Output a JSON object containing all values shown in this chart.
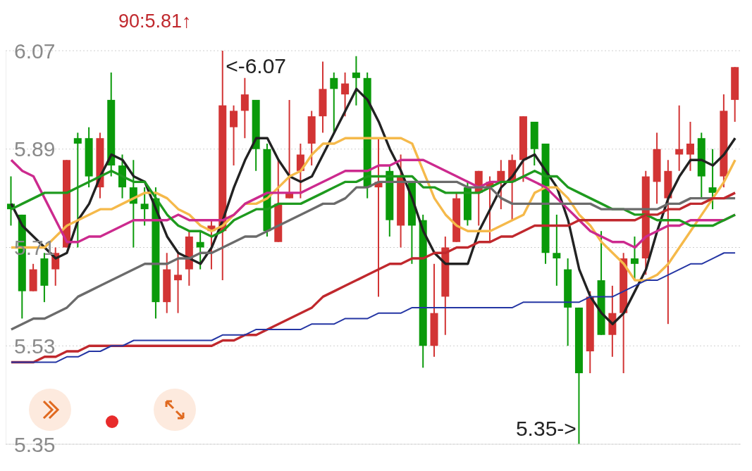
{
  "chart_data": {
    "type": "candlestick",
    "categories": [
      null,
      null,
      null,
      null,
      null,
      null,
      null,
      null,
      null,
      null,
      null,
      null,
      null,
      null,
      null,
      null,
      null,
      null,
      null,
      null,
      null,
      null,
      null,
      null,
      null,
      null,
      null,
      null,
      null,
      null,
      null,
      null,
      null,
      null,
      null,
      null,
      null,
      null,
      null,
      null,
      null,
      null,
      null,
      null,
      null,
      null,
      null,
      null,
      null,
      null,
      null,
      null,
      null,
      null,
      null,
      null,
      null,
      null,
      null,
      null,
      null,
      null,
      null,
      null,
      null,
      null
    ],
    "ohlc": [
      [
        5.79,
        5.84,
        5.75,
        5.78
      ],
      [
        5.77,
        5.77,
        5.58,
        5.63
      ],
      [
        5.63,
        5.68,
        5.63,
        5.67
      ],
      [
        5.69,
        5.7,
        5.61,
        5.64
      ],
      [
        5.67,
        5.71,
        5.64,
        5.7
      ],
      [
        5.71,
        5.87,
        5.71,
        5.87
      ],
      [
        5.91,
        5.92,
        5.71,
        5.9
      ],
      [
        5.91,
        5.93,
        5.82,
        5.84
      ],
      [
        5.82,
        5.92,
        5.8,
        5.91
      ],
      [
        5.98,
        6.03,
        5.84,
        5.86
      ],
      [
        5.86,
        5.88,
        5.8,
        5.82
      ],
      [
        5.82,
        5.87,
        5.71,
        5.79
      ],
      [
        5.79,
        5.82,
        5.75,
        5.78
      ],
      [
        5.8,
        5.82,
        5.58,
        5.61
      ],
      [
        5.61,
        5.7,
        5.59,
        5.67
      ],
      [
        5.65,
        5.7,
        5.59,
        5.66
      ],
      [
        5.67,
        5.74,
        5.64,
        5.73
      ],
      [
        5.72,
        5.74,
        5.67,
        5.71
      ],
      [
        5.74,
        5.76,
        5.67,
        5.75
      ],
      [
        5.74,
        6.07,
        5.65,
        5.97
      ],
      [
        5.93,
        5.97,
        5.86,
        5.96
      ],
      [
        5.96,
        6.02,
        5.91,
        5.99
      ],
      [
        5.98,
        5.98,
        5.85,
        5.89
      ],
      [
        5.89,
        5.9,
        5.73,
        5.74
      ],
      [
        5.72,
        5.87,
        5.72,
        5.79
      ],
      [
        5.8,
        5.98,
        5.8,
        5.81
      ],
      [
        5.85,
        5.9,
        5.8,
        5.88
      ],
      [
        5.9,
        5.96,
        5.86,
        5.95
      ],
      [
        5.95,
        6.05,
        5.92,
        6.0
      ],
      [
        6.02,
        6.03,
        5.92,
        6.0
      ],
      [
        5.99,
        6.03,
        5.95,
        6.01
      ],
      [
        6.03,
        6.06,
        5.97,
        6.02
      ],
      [
        6.02,
        6.03,
        5.8,
        5.82
      ],
      [
        5.82,
        5.91,
        5.62,
        5.83
      ],
      [
        5.85,
        5.86,
        5.73,
        5.76
      ],
      [
        5.75,
        5.88,
        5.71,
        5.84
      ],
      [
        5.83,
        5.83,
        5.68,
        5.75
      ],
      [
        5.76,
        5.77,
        5.49,
        5.53
      ],
      [
        5.53,
        5.68,
        5.51,
        5.59
      ],
      [
        5.62,
        5.73,
        5.55,
        5.71
      ],
      [
        5.72,
        5.81,
        5.72,
        5.8
      ],
      [
        5.82,
        5.83,
        5.75,
        5.76
      ],
      [
        5.81,
        5.85,
        5.75,
        5.85
      ],
      [
        5.82,
        5.84,
        5.72,
        5.83
      ],
      [
        5.83,
        5.87,
        5.78,
        5.85
      ],
      [
        5.83,
        5.88,
        5.76,
        5.87
      ],
      [
        5.87,
        5.95,
        5.83,
        5.95
      ],
      [
        5.94,
        5.94,
        5.86,
        5.89
      ],
      [
        5.9,
        5.9,
        5.68,
        5.7
      ],
      [
        5.7,
        5.77,
        5.64,
        5.69
      ],
      [
        5.67,
        5.69,
        5.53,
        5.6
      ],
      [
        5.6,
        5.6,
        5.35,
        5.48
      ],
      [
        5.52,
        5.63,
        5.48,
        5.62
      ],
      [
        5.65,
        5.74,
        5.55,
        5.55
      ],
      [
        5.55,
        5.64,
        5.51,
        5.59
      ],
      [
        5.59,
        5.7,
        5.48,
        5.69
      ],
      [
        5.69,
        5.73,
        5.65,
        5.68
      ],
      [
        5.69,
        5.85,
        5.66,
        5.84
      ],
      [
        5.83,
        5.92,
        5.79,
        5.89
      ],
      [
        5.8,
        5.87,
        5.57,
        5.85
      ],
      [
        5.88,
        5.97,
        5.85,
        5.89
      ],
      [
        5.88,
        5.94,
        5.85,
        5.9
      ],
      [
        5.91,
        5.92,
        5.8,
        5.84
      ],
      [
        5.82,
        5.89,
        5.78,
        5.81
      ],
      [
        5.84,
        5.99,
        5.82,
        5.96
      ],
      [
        5.98,
        6.04,
        5.94,
        6.04
      ]
    ],
    "colors": [
      "#0a9a0a",
      "#0a9a0a",
      "#d23434",
      "#0a9a0a",
      "#d23434",
      "#d23434",
      "#0a9a0a",
      "#0a9a0a",
      "#d23434",
      "#0a9a0a",
      "#0a9a0a",
      "#0a9a0a",
      "#0a9a0a",
      "#0a9a0a",
      "#d23434",
      "#d23434",
      "#d23434",
      "#0a9a0a",
      "#d23434",
      "#d23434",
      "#d23434",
      "#d23434",
      "#0a9a0a",
      "#0a9a0a",
      "#d23434",
      "#d23434",
      "#d23434",
      "#d23434",
      "#d23434",
      "#0a9a0a",
      "#d23434",
      "#0a9a0a",
      "#0a9a0a",
      "#d23434",
      "#0a9a0a",
      "#d23434",
      "#0a9a0a",
      "#0a9a0a",
      "#d23434",
      "#d23434",
      "#d23434",
      "#0a9a0a",
      "#d23434",
      "#d23434",
      "#d23434",
      "#d23434",
      "#d23434",
      "#0a9a0a",
      "#0a9a0a",
      "#0a9a0a",
      "#0a9a0a",
      "#0a9a0a",
      "#d23434",
      "#0a9a0a",
      "#d23434",
      "#d23434",
      "#0a9a0a",
      "#d23434",
      "#d23434",
      "#d23434",
      "#d23434",
      "#d23434",
      "#0a9a0a",
      "#0a9a0a",
      "#d23434",
      "#d23434"
    ],
    "series": [
      {
        "type": "line",
        "color": "#222222",
        "values": [
          5.79,
          5.75,
          5.73,
          5.71,
          5.69,
          5.7,
          5.76,
          5.79,
          5.84,
          5.88,
          5.87,
          5.84,
          5.83,
          5.78,
          5.73,
          5.7,
          5.69,
          5.68,
          5.71,
          5.76,
          5.82,
          5.87,
          5.91,
          5.91,
          5.87,
          5.84,
          5.83,
          5.84,
          5.88,
          5.92,
          5.96,
          6.0,
          5.98,
          5.94,
          5.89,
          5.85,
          5.8,
          5.74,
          5.7,
          5.68,
          5.68,
          5.68,
          5.74,
          5.78,
          5.82,
          5.84,
          5.87,
          5.88,
          5.85,
          5.82,
          5.76,
          5.67,
          5.62,
          5.59,
          5.57,
          5.59,
          5.63,
          5.67,
          5.74,
          5.8,
          5.84,
          5.87,
          5.87,
          5.86,
          5.88,
          5.91
        ]
      },
      {
        "type": "line",
        "color": "#f5b94a",
        "values": [
          5.71,
          5.71,
          5.71,
          5.71,
          5.73,
          5.75,
          5.76,
          5.77,
          5.78,
          5.78,
          5.79,
          5.8,
          5.81,
          5.81,
          5.8,
          5.78,
          5.77,
          5.75,
          5.74,
          5.75,
          5.77,
          5.79,
          5.79,
          5.8,
          5.82,
          5.84,
          5.85,
          5.88,
          5.9,
          5.9,
          5.91,
          5.91,
          5.91,
          5.91,
          5.91,
          5.91,
          5.9,
          5.85,
          5.8,
          5.77,
          5.75,
          5.74,
          5.74,
          5.74,
          5.75,
          5.76,
          5.77,
          5.81,
          5.82,
          5.82,
          5.8,
          5.77,
          5.75,
          5.72,
          5.7,
          5.68,
          5.65,
          5.65,
          5.66,
          5.68,
          5.71,
          5.74,
          5.77,
          5.8,
          5.83,
          5.87
        ]
      },
      {
        "type": "line",
        "color": "#cc2a8e",
        "values": [
          5.87,
          5.85,
          5.84,
          5.8,
          5.76,
          5.72,
          5.72,
          5.73,
          5.73,
          5.74,
          5.75,
          5.76,
          5.76,
          5.76,
          5.76,
          5.77,
          5.76,
          5.76,
          5.76,
          5.76,
          5.77,
          5.79,
          5.8,
          5.81,
          5.81,
          5.81,
          5.81,
          5.82,
          5.83,
          5.84,
          5.85,
          5.85,
          5.85,
          5.86,
          5.86,
          5.87,
          5.87,
          5.87,
          5.86,
          5.85,
          5.84,
          5.83,
          5.82,
          5.83,
          5.83,
          5.83,
          5.84,
          5.83,
          5.82,
          5.8,
          5.78,
          5.76,
          5.74,
          5.73,
          5.72,
          5.72,
          5.71,
          5.73,
          5.74,
          5.75,
          5.75,
          5.76,
          5.76,
          5.76,
          5.76,
          5.77
        ]
      },
      {
        "type": "line",
        "color": "#1e9a1e",
        "values": [
          5.78,
          5.79,
          5.8,
          5.81,
          5.81,
          5.81,
          5.82,
          5.83,
          5.84,
          5.85,
          5.84,
          5.83,
          5.83,
          5.8,
          5.77,
          5.75,
          5.74,
          5.74,
          5.73,
          5.74,
          5.76,
          5.77,
          5.78,
          5.78,
          5.79,
          5.79,
          5.79,
          5.8,
          5.81,
          5.82,
          5.83,
          5.83,
          5.84,
          5.84,
          5.84,
          5.84,
          5.84,
          5.82,
          5.82,
          5.81,
          5.81,
          5.81,
          5.81,
          5.82,
          5.83,
          5.83,
          5.84,
          5.85,
          5.84,
          5.84,
          5.82,
          5.81,
          5.8,
          5.79,
          5.78,
          5.78,
          5.77,
          5.77,
          5.76,
          5.76,
          5.76,
          5.75,
          5.75,
          5.75,
          5.76,
          5.77
        ]
      },
      {
        "type": "line",
        "color": "#6b6b6b",
        "values": [
          5.56,
          5.57,
          5.58,
          5.58,
          5.59,
          5.6,
          5.62,
          5.63,
          5.64,
          5.65,
          5.66,
          5.67,
          5.68,
          5.68,
          5.68,
          5.69,
          5.69,
          5.7,
          5.7,
          5.71,
          5.72,
          5.73,
          5.73,
          5.74,
          5.75,
          5.76,
          5.77,
          5.78,
          5.79,
          5.79,
          5.8,
          5.82,
          5.82,
          5.83,
          5.83,
          5.83,
          5.83,
          5.83,
          5.83,
          5.83,
          5.83,
          5.82,
          5.82,
          5.82,
          5.8,
          5.79,
          5.79,
          5.79,
          5.79,
          5.79,
          5.79,
          5.79,
          5.79,
          5.78,
          5.78,
          5.78,
          5.78,
          5.78,
          5.78,
          5.79,
          5.79,
          5.8,
          5.8,
          5.8,
          5.8,
          5.8
        ]
      },
      {
        "type": "line",
        "name": "90:5.81↑",
        "color": "#c0282d",
        "values": [
          5.5,
          5.5,
          5.5,
          5.51,
          5.51,
          5.52,
          5.52,
          5.53,
          5.53,
          5.53,
          5.53,
          5.53,
          5.53,
          5.53,
          5.53,
          5.53,
          5.53,
          5.53,
          5.53,
          5.54,
          5.54,
          5.55,
          5.55,
          5.56,
          5.57,
          5.58,
          5.59,
          5.6,
          5.62,
          5.63,
          5.64,
          5.65,
          5.66,
          5.67,
          5.68,
          5.68,
          5.69,
          5.69,
          5.7,
          5.7,
          5.71,
          5.71,
          5.72,
          5.72,
          5.73,
          5.73,
          5.74,
          5.75,
          5.75,
          5.75,
          5.75,
          5.76,
          5.76,
          5.76,
          5.76,
          5.76,
          5.76,
          5.77,
          5.77,
          5.78,
          5.78,
          5.79,
          5.79,
          5.8,
          5.8,
          5.81
        ]
      },
      {
        "type": "line",
        "color": "#2536a4",
        "values": [
          5.5,
          5.5,
          5.5,
          5.5,
          5.5,
          5.51,
          5.51,
          5.52,
          5.52,
          5.53,
          5.53,
          5.54,
          5.54,
          5.54,
          5.54,
          5.54,
          5.54,
          5.54,
          5.54,
          5.55,
          5.55,
          5.55,
          5.56,
          5.56,
          5.56,
          5.56,
          5.56,
          5.57,
          5.57,
          5.57,
          5.58,
          5.58,
          5.58,
          5.59,
          5.59,
          5.59,
          5.6,
          5.6,
          5.6,
          5.6,
          5.6,
          5.6,
          5.6,
          5.6,
          5.6,
          5.6,
          5.61,
          5.61,
          5.61,
          5.61,
          5.61,
          5.61,
          5.62,
          5.62,
          5.62,
          5.63,
          5.64,
          5.65,
          5.65,
          5.66,
          5.67,
          5.68,
          5.68,
          5.69,
          5.7,
          5.7
        ]
      }
    ],
    "ylim": [
      5.35,
      6.07
    ],
    "yticks": [
      6.07,
      5.89,
      5.71,
      5.53,
      5.35
    ],
    "grid": "y",
    "legend": "top",
    "annotations": [
      "<-6.07",
      "5.35->"
    ]
  }
}
